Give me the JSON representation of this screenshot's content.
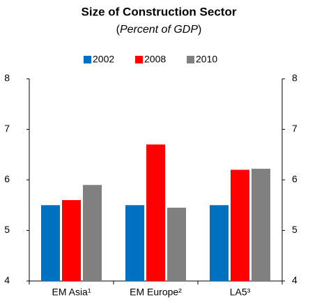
{
  "chart_data": {
    "type": "bar",
    "title": "Size of Construction Sector",
    "subtitle_parts": [
      "(",
      "Percent of GDP",
      ")"
    ],
    "categories": [
      "EM Asia¹",
      "EM Europe²",
      "LA5³"
    ],
    "series": [
      {
        "name": "2002",
        "color": "#0070c0",
        "values": [
          5.5,
          5.5,
          5.5
        ]
      },
      {
        "name": "2008",
        "color": "#ff0000",
        "values": [
          5.6,
          6.7,
          6.2
        ]
      },
      {
        "name": "2010",
        "color": "#808080",
        "values": [
          5.9,
          5.45,
          6.22
        ]
      }
    ],
    "ylim": [
      4,
      8
    ],
    "yticks": [
      4,
      5,
      6,
      7,
      8
    ],
    "right_axis": true,
    "grid": false,
    "legend": "top"
  }
}
